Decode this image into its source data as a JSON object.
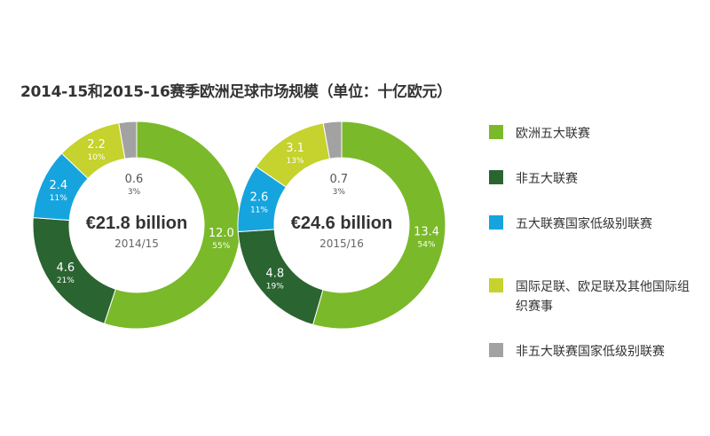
{
  "colors": {
    "eu_big5": "#7ab929",
    "non_big5": "#2a6431",
    "big5_lower": "#16a4de",
    "international": "#c6d22d",
    "non_big5_lower": "#a2a2a2"
  },
  "chart_data": {
    "type": "pie",
    "title": "2014-15和2015-16赛季欧洲足球市场规模（单位：十亿欧元）",
    "series_legend": [
      "欧洲五大联赛",
      "非五大联赛",
      "五大联赛国家低级别联赛",
      "国际足联、欧足联及其他国际组织赛事",
      "非五大联赛国家低级别联赛"
    ],
    "legend_placement": "right",
    "charts": [
      {
        "center_value": "€21.8 billion",
        "center_label": "2014/15",
        "slices": [
          {
            "legend_index": 0,
            "value": 12.0,
            "value_label": "12.0",
            "percent_label": "55%"
          },
          {
            "legend_index": 1,
            "value": 4.6,
            "value_label": "4.6",
            "percent_label": "21%"
          },
          {
            "legend_index": 2,
            "value": 2.4,
            "value_label": "2.4",
            "percent_label": "11%"
          },
          {
            "legend_index": 3,
            "value": 2.2,
            "value_label": "2.2",
            "percent_label": "10%"
          },
          {
            "legend_index": 4,
            "value": 0.6,
            "value_label": "0.6",
            "percent_label": "3%"
          }
        ]
      },
      {
        "center_value": "€24.6 billion",
        "center_label": "2015/16",
        "slices": [
          {
            "legend_index": 0,
            "value": 13.4,
            "value_label": "13.4",
            "percent_label": "54%"
          },
          {
            "legend_index": 1,
            "value": 4.8,
            "value_label": "4.8",
            "percent_label": "19%"
          },
          {
            "legend_index": 2,
            "value": 2.6,
            "value_label": "2.6",
            "percent_label": "11%"
          },
          {
            "legend_index": 3,
            "value": 3.1,
            "value_label": "3.1",
            "percent_label": "13%"
          },
          {
            "legend_index": 4,
            "value": 0.7,
            "value_label": "0.7",
            "percent_label": "3%"
          }
        ]
      }
    ]
  }
}
